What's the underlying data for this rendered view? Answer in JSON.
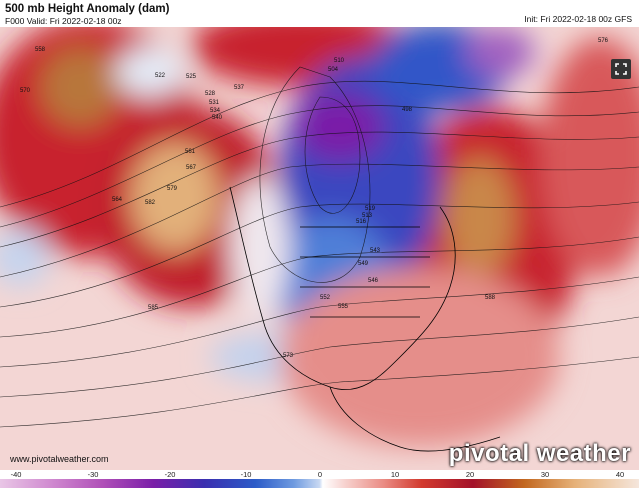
{
  "header": {
    "title": "500 mb Height Anomaly (dam)",
    "valid": "F000 Valid: Fri 2022-02-18 00z",
    "init": "Init: Fri 2022-02-18 00z GFS"
  },
  "map": {
    "contour_labels": [
      "558",
      "570",
      "582",
      "522",
      "528",
      "534",
      "540",
      "546",
      "552",
      "564",
      "576",
      "588",
      "498",
      "510",
      "504",
      "516",
      "573",
      "579",
      "585",
      "561",
      "567",
      "555",
      "549",
      "543",
      "537",
      "531",
      "525",
      "519",
      "513"
    ]
  },
  "footer": {
    "website": "www.pivotalweather.com",
    "brand": "pivotal weather"
  },
  "colorbar": {
    "ticks": [
      "-40",
      "-30",
      "-20",
      "-10",
      "0",
      "10",
      "20",
      "30",
      "40"
    ]
  },
  "colors": {
    "positive_anomaly": "#c0142a",
    "negative_anomaly": "#2c4fc8",
    "strong_negative": "#7a1fa8",
    "strong_positive": "#d9a56a"
  }
}
